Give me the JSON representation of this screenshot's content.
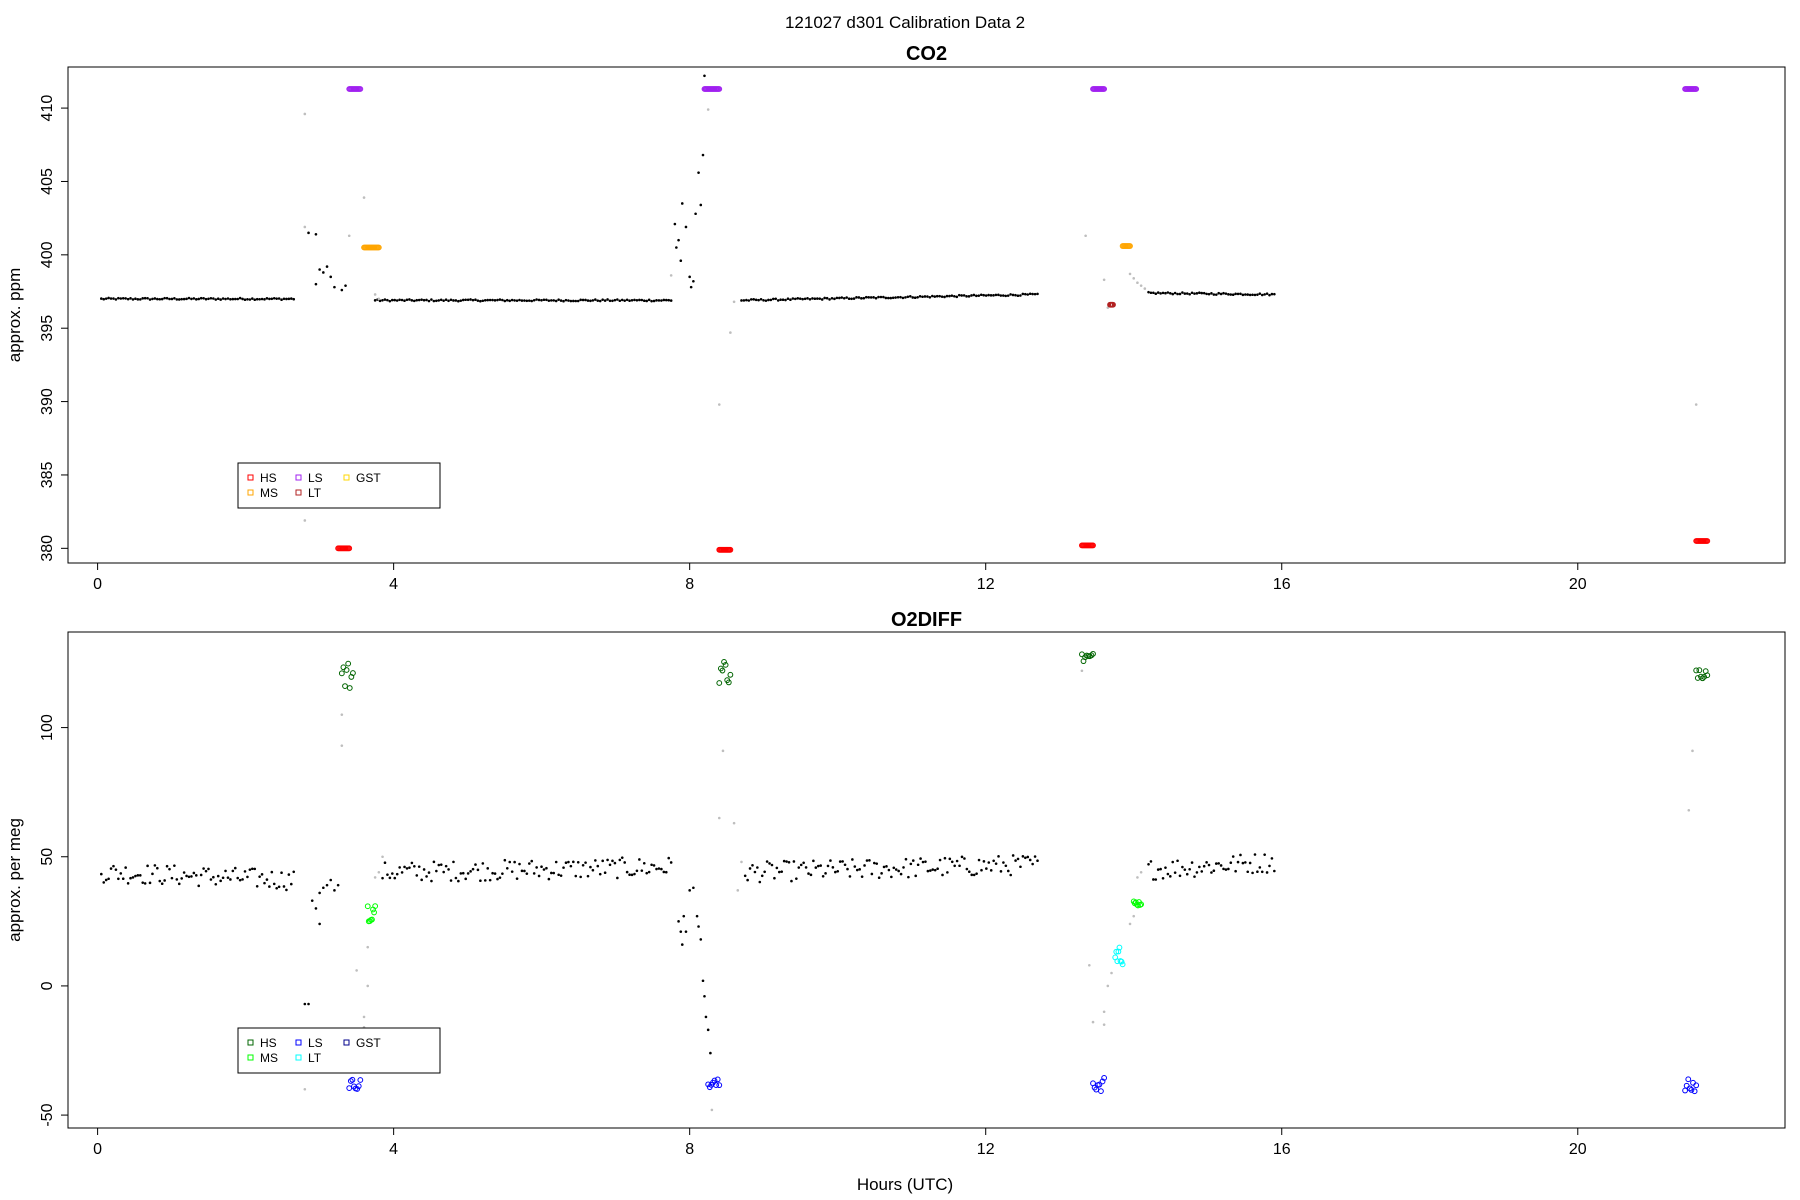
{
  "figure": {
    "suptitle": "121027   d301   Calibration Data 2",
    "xlabel": "Hours (UTC)"
  },
  "chart_data": [
    {
      "type": "scatter",
      "title": "CO2",
      "ylabel": "approx. ppm",
      "xlim": [
        -0.4,
        22.8
      ],
      "ylim": [
        379.0,
        412.8
      ],
      "xticks": [
        0,
        4,
        8,
        12,
        16,
        20
      ],
      "yticks": [
        380,
        385,
        390,
        395,
        400,
        405,
        410
      ],
      "legend": {
        "position": "bottom-left",
        "entries": [
          {
            "label": "HS",
            "color": "#ff0000"
          },
          {
            "label": "MS",
            "color": "#ffa500"
          },
          {
            "label": "LS",
            "color": "#a020f0"
          },
          {
            "label": "LT",
            "color": "#b22222"
          },
          {
            "label": "GST",
            "color": "#ffd700"
          }
        ]
      },
      "sample_series": {
        "name": "sample",
        "color": "#000000",
        "segments": [
          {
            "x0": 0.05,
            "x1": 2.65,
            "y0": 397.0,
            "y1": 397.0
          },
          {
            "x0": 3.75,
            "x1": 7.75,
            "y0": 396.9,
            "y1": 396.9
          },
          {
            "x0": 8.7,
            "x1": 12.7,
            "y0": 396.9,
            "y1": 397.3
          },
          {
            "x0": 14.2,
            "x1": 15.9,
            "y0": 397.4,
            "y1": 397.3
          }
        ]
      },
      "scatter_points": {
        "black": [
          [
            2.85,
            401.5
          ],
          [
            2.95,
            401.4
          ],
          [
            3.0,
            399.0
          ],
          [
            2.95,
            398.0
          ],
          [
            3.05,
            398.8
          ],
          [
            3.1,
            399.2
          ],
          [
            3.15,
            398.5
          ],
          [
            3.2,
            397.8
          ],
          [
            3.3,
            397.6
          ],
          [
            3.35,
            397.9
          ],
          [
            7.8,
            402.1
          ],
          [
            7.82,
            400.5
          ],
          [
            7.85,
            401.0
          ],
          [
            7.88,
            399.6
          ],
          [
            7.9,
            403.5
          ],
          [
            7.95,
            401.9
          ],
          [
            8.0,
            398.5
          ],
          [
            8.02,
            397.8
          ],
          [
            8.05,
            398.2
          ],
          [
            8.08,
            402.8
          ],
          [
            8.12,
            405.6
          ],
          [
            8.15,
            403.4
          ],
          [
            8.18,
            406.8
          ],
          [
            8.2,
            412.2
          ],
          [
            13.73,
            396.6
          ]
        ],
        "grey": [
          [
            2.8,
            409.6
          ],
          [
            2.8,
            401.9
          ],
          [
            3.4,
            401.3
          ],
          [
            3.6,
            403.9
          ],
          [
            3.75,
            397.3
          ],
          [
            3.8,
            397.0
          ],
          [
            7.75,
            398.6
          ],
          [
            8.25,
            409.9
          ],
          [
            8.4,
            389.8
          ],
          [
            8.55,
            394.7
          ],
          [
            8.6,
            396.8
          ],
          [
            13.35,
            401.3
          ],
          [
            13.6,
            398.3
          ],
          [
            13.65,
            396.4
          ],
          [
            13.95,
            398.7
          ],
          [
            2.8,
            381.9
          ],
          [
            21.6,
            389.8
          ],
          [
            14.0,
            398.4
          ],
          [
            14.05,
            398.1
          ],
          [
            14.1,
            397.9
          ],
          [
            14.15,
            397.7
          ]
        ]
      },
      "calibration_groups": [
        {
          "name": "LS",
          "color": "#a020f0",
          "x": [
            3.4,
            3.55
          ],
          "y": 411.3
        },
        {
          "name": "LS",
          "color": "#a020f0",
          "x": [
            8.2,
            8.4
          ],
          "y": 411.3
        },
        {
          "name": "LS",
          "color": "#a020f0",
          "x": [
            13.45,
            13.6
          ],
          "y": 411.3
        },
        {
          "name": "LS",
          "color": "#a020f0",
          "x": [
            21.45,
            21.6
          ],
          "y": 411.3
        },
        {
          "name": "MS",
          "color": "#ffa500",
          "x": [
            3.6,
            3.8
          ],
          "y": 400.5
        },
        {
          "name": "MS",
          "color": "#ffa500",
          "x": [
            13.85,
            13.95
          ],
          "y": 400.6
        },
        {
          "name": "HS",
          "color": "#ff0000",
          "x": [
            3.25,
            3.4
          ],
          "y": 380.0
        },
        {
          "name": "HS",
          "color": "#ff0000",
          "x": [
            8.4,
            8.55
          ],
          "y": 379.9
        },
        {
          "name": "HS",
          "color": "#ff0000",
          "x": [
            13.3,
            13.45
          ],
          "y": 380.2
        },
        {
          "name": "HS",
          "color": "#ff0000",
          "x": [
            21.6,
            21.75
          ],
          "y": 380.5
        },
        {
          "name": "LT",
          "color": "#b22222",
          "x": [
            13.68,
            13.72
          ],
          "y": 396.6
        }
      ]
    },
    {
      "type": "scatter",
      "title": "O2DIFF",
      "ylabel": "approx. per meg",
      "xlim": [
        -0.4,
        22.8
      ],
      "ylim": [
        -55,
        137
      ],
      "xticks": [
        0,
        4,
        8,
        12,
        16,
        20
      ],
      "yticks": [
        -50,
        0,
        50,
        100
      ],
      "legend": {
        "position": "bottom-left",
        "entries": [
          {
            "label": "HS",
            "color": "#006400"
          },
          {
            "label": "MS",
            "color": "#00ff00"
          },
          {
            "label": "LS",
            "color": "#0000ff"
          },
          {
            "label": "LT",
            "color": "#00ffff"
          },
          {
            "label": "GST",
            "color": "#00008b"
          }
        ]
      },
      "sample_series": {
        "name": "sample",
        "color": "#000000",
        "segments": [
          {
            "x0": 0.05,
            "x1": 2.65,
            "y0": 44,
            "y1": 41,
            "spread": 4
          },
          {
            "x0": 3.85,
            "x1": 7.75,
            "y0": 44,
            "y1": 46,
            "spread": 4
          },
          {
            "x0": 8.75,
            "x1": 12.7,
            "y0": 44,
            "y1": 47,
            "spread": 4
          },
          {
            "x0": 14.2,
            "x1": 15.9,
            "y0": 45,
            "y1": 48,
            "spread": 4
          }
        ]
      },
      "scatter_points": {
        "black": [
          [
            2.8,
            -7
          ],
          [
            2.85,
            -7
          ],
          [
            2.9,
            33
          ],
          [
            2.95,
            30
          ],
          [
            3.0,
            24
          ],
          [
            3.0,
            36
          ],
          [
            3.05,
            38
          ],
          [
            3.1,
            39
          ],
          [
            3.15,
            41
          ],
          [
            3.2,
            37
          ],
          [
            3.25,
            39
          ],
          [
            7.85,
            25
          ],
          [
            7.88,
            21
          ],
          [
            7.9,
            16
          ],
          [
            7.92,
            27
          ],
          [
            7.95,
            21
          ],
          [
            8.0,
            37
          ],
          [
            8.05,
            38
          ],
          [
            8.1,
            27
          ],
          [
            8.12,
            23
          ],
          [
            8.15,
            18
          ],
          [
            8.18,
            2
          ],
          [
            8.2,
            -4
          ],
          [
            8.22,
            -12
          ],
          [
            8.25,
            -17
          ],
          [
            8.28,
            -26
          ]
        ],
        "grey": [
          [
            3.3,
            105
          ],
          [
            3.3,
            93
          ],
          [
            3.5,
            6
          ],
          [
            3.65,
            0
          ],
          [
            3.6,
            -12
          ],
          [
            3.6,
            -16
          ],
          [
            3.65,
            15
          ],
          [
            2.8,
            -40
          ],
          [
            8.3,
            -48
          ],
          [
            8.45,
            91
          ],
          [
            8.4,
            65
          ],
          [
            8.6,
            63
          ],
          [
            8.65,
            37
          ],
          [
            8.7,
            48
          ],
          [
            13.3,
            122
          ],
          [
            13.4,
            8
          ],
          [
            13.45,
            -14
          ],
          [
            13.6,
            -15
          ],
          [
            13.6,
            -10
          ],
          [
            13.65,
            0
          ],
          [
            13.7,
            5
          ],
          [
            13.95,
            24
          ],
          [
            14.0,
            27
          ],
          [
            14.05,
            42
          ],
          [
            14.1,
            44
          ],
          [
            21.55,
            91
          ],
          [
            21.5,
            68
          ],
          [
            3.75,
            42
          ],
          [
            3.8,
            44
          ],
          [
            3.85,
            50
          ]
        ]
      },
      "calibration_groups": [
        {
          "name": "HS",
          "color": "#006400",
          "x": [
            3.3,
            3.45
          ],
          "y": 120,
          "spread": 6
        },
        {
          "name": "HS",
          "color": "#006400",
          "x": [
            8.4,
            8.55
          ],
          "y": 122,
          "spread": 5
        },
        {
          "name": "HS",
          "color": "#006400",
          "x": [
            13.3,
            13.45
          ],
          "y": 127,
          "spread": 2
        },
        {
          "name": "HS",
          "color": "#006400",
          "x": [
            21.6,
            21.75
          ],
          "y": 122,
          "spread": 3
        },
        {
          "name": "MS",
          "color": "#00ff00",
          "x": [
            3.65,
            3.75
          ],
          "y": 29,
          "spread": 4
        },
        {
          "name": "MS",
          "color": "#00ff00",
          "x": [
            14.0,
            14.1
          ],
          "y": 32,
          "spread": 1
        },
        {
          "name": "LS",
          "color": "#0000ff",
          "x": [
            3.4,
            3.55
          ],
          "y": -38,
          "spread": 2
        },
        {
          "name": "LS",
          "color": "#0000ff",
          "x": [
            8.25,
            8.4
          ],
          "y": -38,
          "spread": 2
        },
        {
          "name": "LS",
          "color": "#0000ff",
          "x": [
            13.45,
            13.6
          ],
          "y": -38,
          "spread": 3
        },
        {
          "name": "LS",
          "color": "#0000ff",
          "x": [
            21.45,
            21.6
          ],
          "y": -39,
          "spread": 3
        },
        {
          "name": "LT",
          "color": "#00ffff",
          "x": [
            13.75,
            13.85
          ],
          "y": 12,
          "spread": 4
        }
      ]
    }
  ]
}
